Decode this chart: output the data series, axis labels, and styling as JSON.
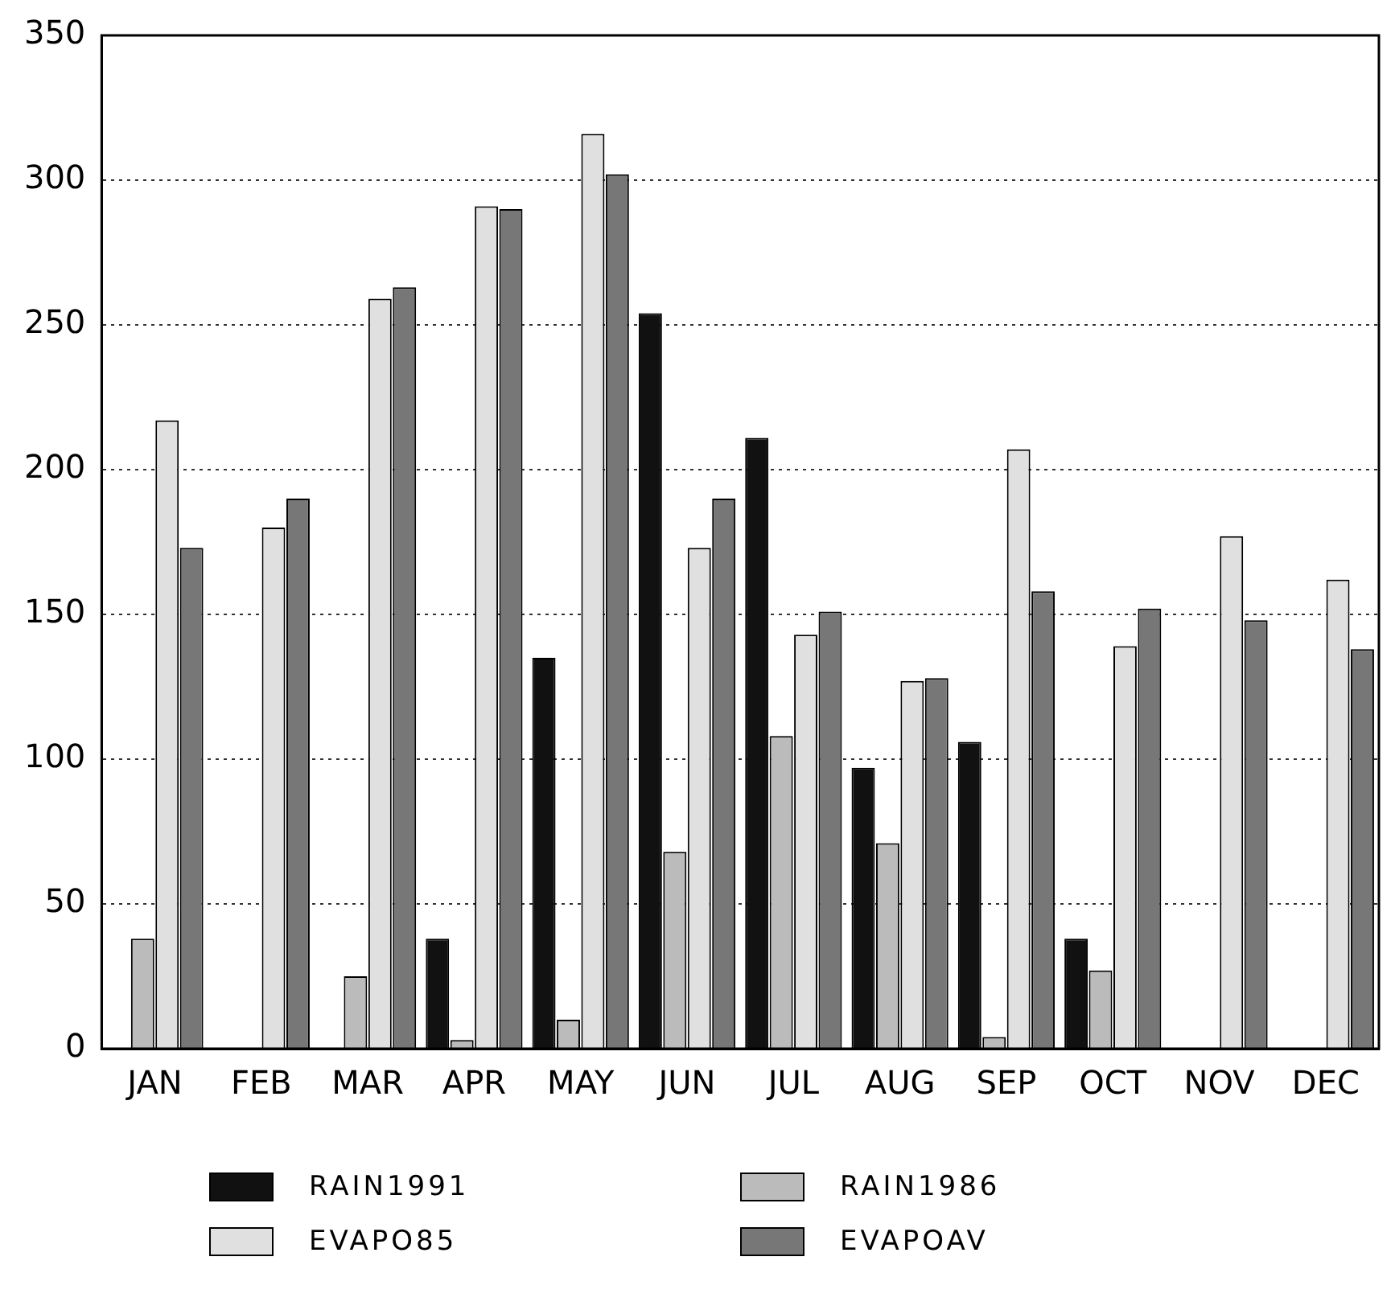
{
  "chart_data": {
    "type": "bar",
    "categories": [
      "JAN",
      "FEB",
      "MAR",
      "APR",
      "MAY",
      "JUN",
      "JUL",
      "AUG",
      "SEP",
      "OCT",
      "NOV",
      "DEC"
    ],
    "series": [
      {
        "name": "RAIN1991",
        "color": "#111111",
        "values": [
          0,
          0,
          0,
          38,
          135,
          254,
          211,
          97,
          106,
          38,
          0,
          0
        ]
      },
      {
        "name": "RAIN1986",
        "color": "#bbbbbb",
        "values": [
          38,
          0,
          25,
          3,
          10,
          68,
          108,
          71,
          4,
          27,
          0,
          0
        ]
      },
      {
        "name": "EVAPO85",
        "color": "#e0e0e0",
        "values": [
          217,
          180,
          259,
          291,
          316,
          173,
          143,
          127,
          207,
          139,
          177,
          162
        ]
      },
      {
        "name": "EVAPOAV",
        "color": "#777777",
        "values": [
          173,
          190,
          263,
          290,
          302,
          190,
          151,
          128,
          158,
          152,
          148,
          138
        ]
      }
    ],
    "ylim": [
      0,
      350
    ],
    "yticks": [
      0,
      50,
      100,
      150,
      200,
      250,
      300,
      350
    ],
    "grid": "y",
    "legend": "bottom"
  }
}
